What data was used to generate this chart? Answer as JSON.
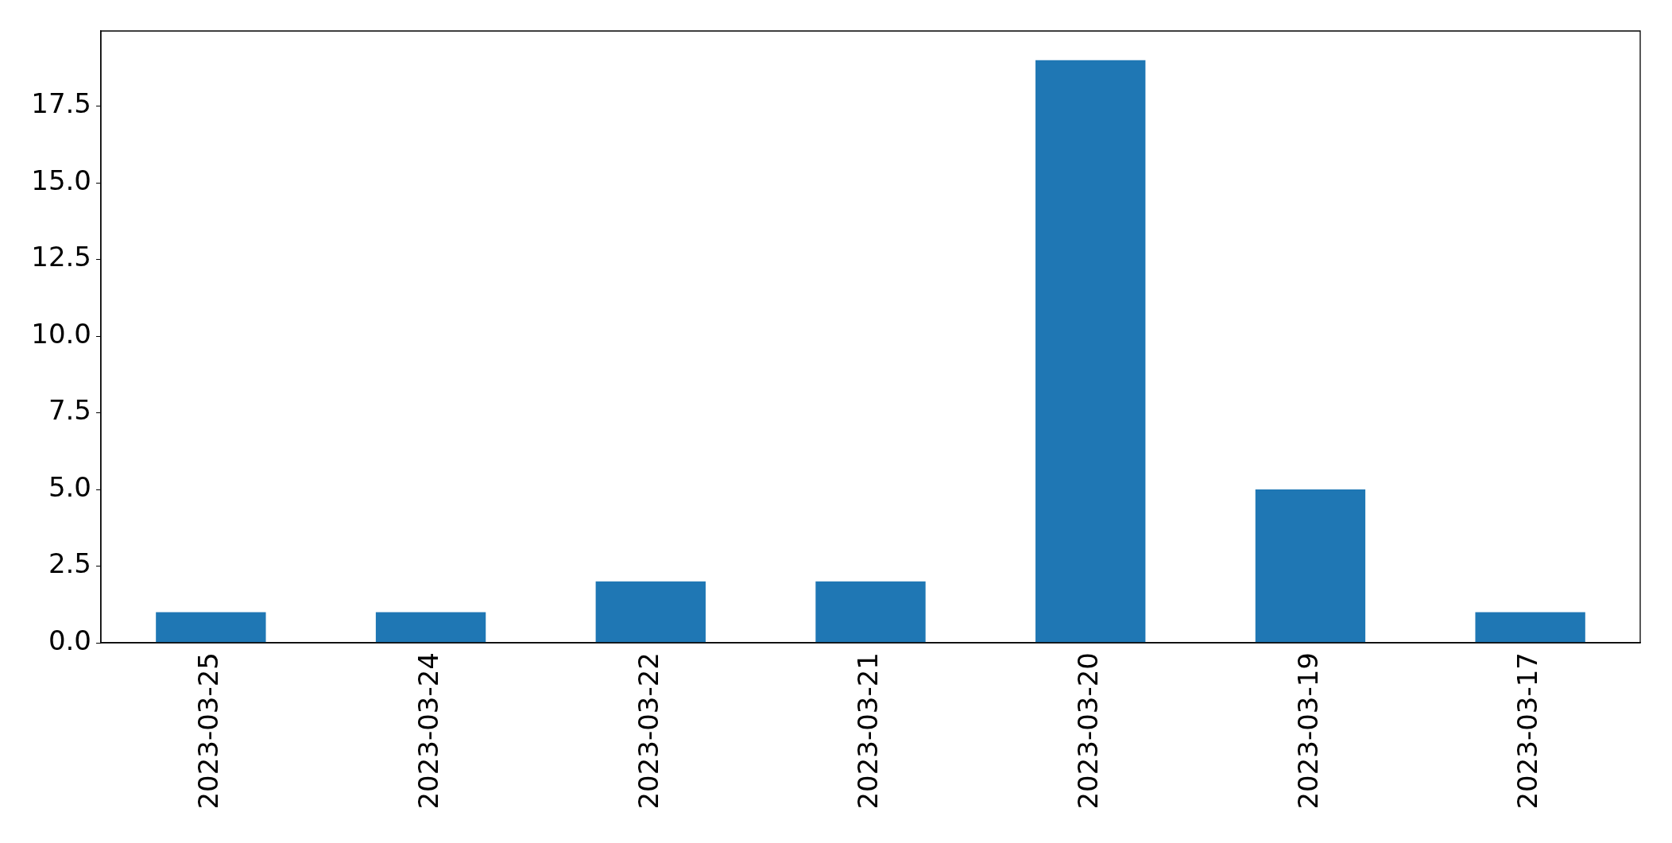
{
  "chart_data": {
    "type": "bar",
    "categories": [
      "2023-03-25",
      "2023-03-24",
      "2023-03-22",
      "2023-03-21",
      "2023-03-20",
      "2023-03-19",
      "2023-03-17"
    ],
    "values": [
      1,
      1,
      2,
      2,
      19,
      5,
      1
    ],
    "color": "#1f77b4",
    "ylim": [
      0,
      19.95
    ],
    "yticks": [
      {
        "value": 0,
        "label": "0.0"
      },
      2.5,
      {
        "value": 5,
        "label": "5.0"
      },
      7.5,
      {
        "value": 10,
        "label": "10.0"
      },
      12.5,
      {
        "value": 15,
        "label": "15.0"
      },
      17.5
    ]
  }
}
